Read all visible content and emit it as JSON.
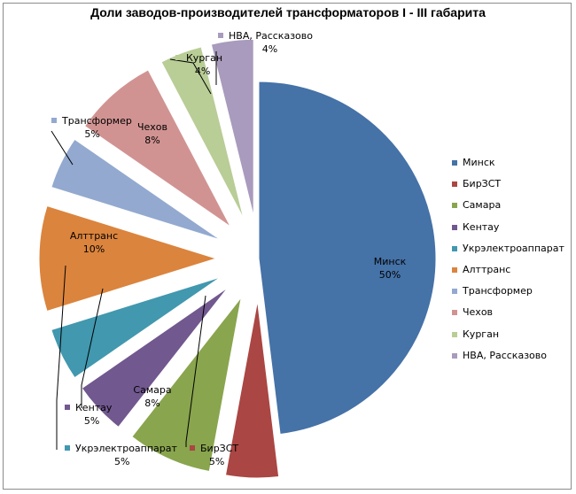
{
  "chart_data": {
    "type": "pie",
    "title": "Доли заводов-производителей трансформаторов I - III габарита",
    "legend_position": "right",
    "slices": [
      {
        "name": "Минск",
        "value": 50,
        "label": "50%",
        "color": "#4572A7"
      },
      {
        "name": "БирЗСТ",
        "value": 5,
        "label": "5%",
        "color": "#AA4643"
      },
      {
        "name": "Самара",
        "value": 8,
        "label": "8%",
        "color": "#89A54E"
      },
      {
        "name": "Кентау",
        "value": 5,
        "label": "5%",
        "color": "#71588F"
      },
      {
        "name": "Укрэлектроаппарат",
        "value": 5,
        "label": "5%",
        "color": "#4198AF"
      },
      {
        "name": "Алттранс",
        "value": 10,
        "label": "10%",
        "color": "#DB843D"
      },
      {
        "name": "Трансформер",
        "value": 5,
        "label": "5%",
        "color": "#93A9CF"
      },
      {
        "name": "Чехов",
        "value": 8,
        "label": "8%",
        "color": "#D19392"
      },
      {
        "name": "Курган",
        "value": 4,
        "label": "4%",
        "color": "#B9CD96"
      },
      {
        "name": "НВА, Рассказово",
        "value": 4,
        "label": "4%",
        "color": "#A99BBD"
      }
    ]
  }
}
